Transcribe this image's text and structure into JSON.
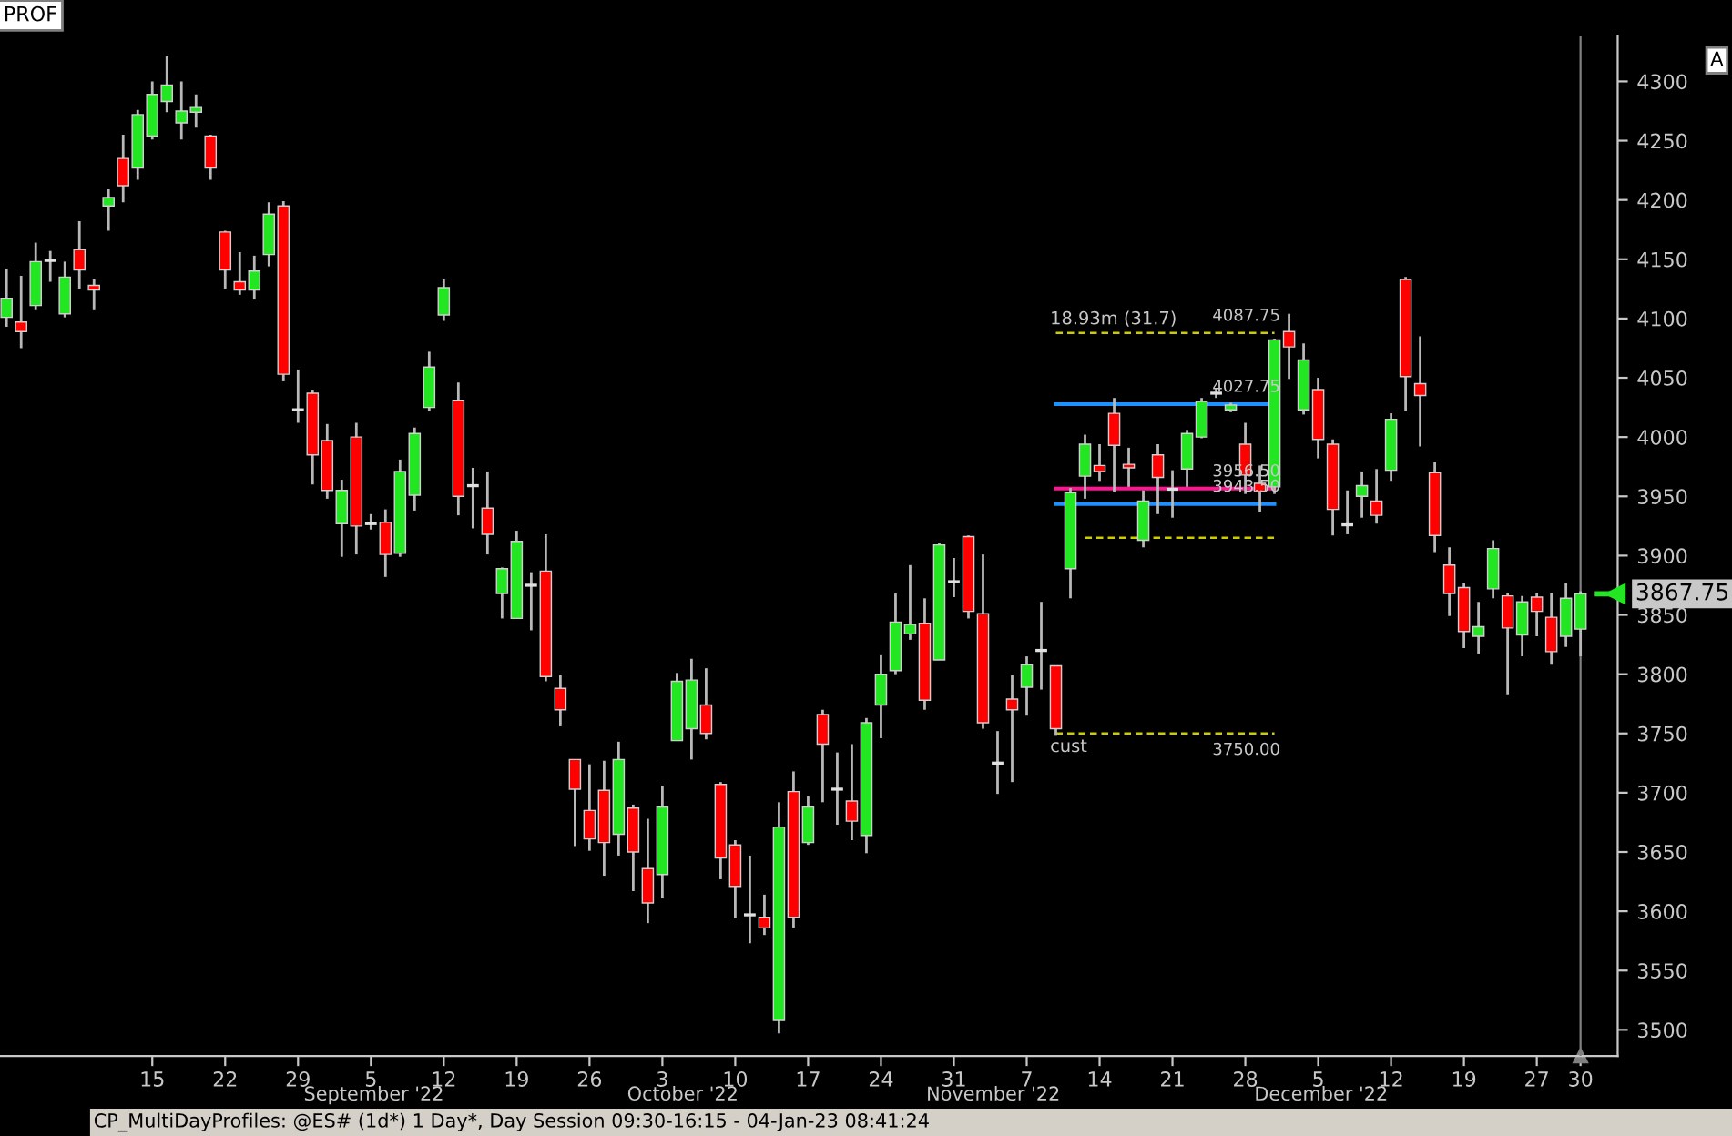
{
  "chart_data": {
    "type": "candlestick",
    "title": "CP_MultiDayProfiles: @ES# (1d*) 1 Day*, Day Session 09:30-16:15 - 04-Jan-23 08:41:24",
    "categories": [
      null,
      null,
      null,
      null,
      null,
      null,
      null,
      null,
      null,
      null,
      "15",
      null,
      null,
      null,
      null,
      "22",
      null,
      null,
      null,
      null,
      "29",
      null,
      null,
      null,
      null,
      "5",
      null,
      null,
      null,
      null,
      "12",
      null,
      null,
      null,
      null,
      "19",
      null,
      null,
      null,
      null,
      "26",
      null,
      null,
      null,
      null,
      "3",
      null,
      null,
      null,
      null,
      "10",
      null,
      null,
      null,
      null,
      "17",
      null,
      null,
      null,
      null,
      "24",
      null,
      null,
      null,
      null,
      "31",
      null,
      null,
      null,
      null,
      "7",
      null,
      null,
      null,
      null,
      "14",
      null,
      null,
      null,
      null,
      "21",
      null,
      null,
      null,
      null,
      "28",
      null,
      null,
      null,
      null,
      "5",
      null,
      null,
      null,
      null,
      "12",
      null,
      null,
      null,
      null,
      "19",
      null,
      null,
      null,
      null,
      "27",
      null,
      null,
      "30"
    ],
    "ohlc": [
      [
        4101,
        4142,
        4093,
        4117
      ],
      [
        4097,
        4136,
        4075,
        4089
      ],
      [
        4111,
        4164,
        4107,
        4148
      ],
      [
        4149,
        4157,
        4131,
        4149
      ],
      [
        4104,
        4148,
        4101,
        4135
      ],
      [
        4158,
        4182,
        4125,
        4141
      ],
      [
        4128,
        4133,
        4107,
        4124
      ],
      [
        4195,
        4209,
        4174,
        4202
      ],
      [
        4235,
        4255,
        4198,
        4212
      ],
      [
        4227,
        4276,
        4217,
        4272
      ],
      [
        4254,
        4300,
        4251,
        4289
      ],
      [
        4283,
        4321,
        4274,
        4297
      ],
      [
        4265,
        4300,
        4251,
        4275
      ],
      [
        4274,
        4289,
        4261,
        4278
      ],
      [
        4254,
        4255,
        4217,
        4227
      ],
      [
        4173,
        4174,
        4125,
        4141
      ],
      [
        4131,
        4156,
        4120,
        4124
      ],
      [
        4124,
        4153,
        4116,
        4140
      ],
      [
        4154,
        4198,
        4144,
        4188
      ],
      [
        4195,
        4199,
        4047,
        4053
      ],
      [
        4023,
        4057,
        4012,
        4023
      ],
      [
        4037,
        4040,
        3960,
        3985
      ],
      [
        3997,
        4011,
        3948,
        3955
      ],
      [
        3927,
        3964,
        3899,
        3955
      ],
      [
        4000,
        4012,
        3901,
        3925
      ],
      [
        3927,
        3935,
        3922,
        3927
      ],
      [
        3928,
        3939,
        3882,
        3901
      ],
      [
        3902,
        3981,
        3899,
        3971
      ],
      [
        3951,
        4008,
        3938,
        4003
      ],
      [
        4025,
        4072,
        4022,
        4059
      ],
      [
        4103,
        4133,
        4098,
        4126
      ],
      [
        4031,
        4046,
        3934,
        3950
      ],
      [
        3959,
        3974,
        3923,
        3959
      ],
      [
        3940,
        3971,
        3901,
        3918
      ],
      [
        3868,
        3890,
        3847,
        3889
      ],
      [
        3847,
        3921,
        3847,
        3912
      ],
      [
        3875,
        3886,
        3837,
        3875
      ],
      [
        3887,
        3918,
        3794,
        3798
      ],
      [
        3788,
        3799,
        3756,
        3770
      ],
      [
        3728,
        3728,
        3655,
        3703
      ],
      [
        3685,
        3724,
        3651,
        3661
      ],
      [
        3702,
        3727,
        3630,
        3658
      ],
      [
        3665,
        3743,
        3647,
        3728
      ],
      [
        3687,
        3690,
        3617,
        3650
      ],
      [
        3636,
        3678,
        3590,
        3607
      ],
      [
        3631,
        3706,
        3611,
        3688
      ],
      [
        3744,
        3801,
        3744,
        3794
      ],
      [
        3754,
        3813,
        3728,
        3795
      ],
      [
        3774,
        3805,
        3745,
        3750
      ],
      [
        3707,
        3709,
        3627,
        3645
      ],
      [
        3656,
        3660,
        3594,
        3621
      ],
      [
        3597,
        3647,
        3573,
        3597
      ],
      [
        3595,
        3614,
        3580,
        3586
      ],
      [
        3508,
        3692,
        3497,
        3671
      ],
      [
        3701,
        3718,
        3586,
        3595
      ],
      [
        3658,
        3697,
        3656,
        3688
      ],
      [
        3766,
        3770,
        3692,
        3741
      ],
      [
        3703,
        3734,
        3673,
        3703
      ],
      [
        3693,
        3741,
        3660,
        3676
      ],
      [
        3664,
        3763,
        3649,
        3759
      ],
      [
        3774,
        3816,
        3746,
        3800
      ],
      [
        3803,
        3868,
        3800,
        3844
      ],
      [
        3834,
        3892,
        3829,
        3842
      ],
      [
        3843,
        3864,
        3770,
        3778
      ],
      [
        3812,
        3911,
        3812,
        3909
      ],
      [
        3878,
        3898,
        3865,
        3878
      ],
      [
        3916,
        3917,
        3847,
        3853
      ],
      [
        3851,
        3901,
        3754,
        3759
      ],
      [
        3725,
        3752,
        3699,
        3725
      ],
      [
        3779,
        3799,
        3709,
        3770
      ],
      [
        3789,
        3815,
        3765,
        3808
      ],
      [
        3820,
        3861,
        3787,
        3820
      ],
      [
        3807,
        3807,
        3748,
        3754
      ],
      [
        3889,
        3957,
        3864,
        3953
      ],
      [
        3967,
        4002,
        3948,
        3994
      ],
      [
        3976,
        3994,
        3963,
        3971
      ],
      [
        4020,
        4033,
        3954,
        3993
      ],
      [
        3977,
        3991,
        3958,
        3974
      ],
      [
        3913,
        3955,
        3907,
        3946
      ],
      [
        3985,
        3994,
        3935,
        3966
      ],
      [
        3956,
        3972,
        3932,
        3956
      ],
      [
        3973,
        4006,
        3958,
        4003
      ],
      [
        4000,
        4033,
        3999,
        4030
      ],
      [
        4037,
        4041,
        4033,
        4037
      ],
      [
        4023,
        4029,
        4021,
        4027
      ],
      [
        3994,
        4012,
        3952,
        3968
      ],
      [
        3961,
        3976,
        3937,
        3954
      ],
      [
        3958,
        4083,
        3952,
        4082
      ],
      [
        4089,
        4104,
        4049,
        4076
      ],
      [
        4023,
        4079,
        4019,
        4065
      ],
      [
        4040,
        4050,
        3982,
        3998
      ],
      [
        3994,
        3998,
        3917,
        3939
      ],
      [
        3926,
        3955,
        3918,
        3926
      ],
      [
        3950,
        3971,
        3932,
        3959
      ],
      [
        3946,
        3973,
        3927,
        3934
      ],
      [
        3972,
        4020,
        3963,
        4015
      ],
      [
        4133,
        4135,
        4022,
        4051
      ],
      [
        4045,
        4085,
        3992,
        4035
      ],
      [
        3970,
        3979,
        3903,
        3917
      ],
      [
        3892,
        3907,
        3849,
        3868
      ],
      [
        3873,
        3877,
        3822,
        3836
      ],
      [
        3832,
        3861,
        3817,
        3840
      ],
      [
        3872,
        3913,
        3864,
        3906
      ],
      [
        3866,
        3868,
        3783,
        3839
      ],
      [
        3833,
        3866,
        3815,
        3861
      ],
      [
        3865,
        3868,
        3832,
        3853
      ],
      [
        3848,
        3868,
        3808,
        3819
      ],
      [
        3832,
        3877,
        3823,
        3864
      ],
      [
        3838,
        3870,
        3815,
        3867.75
      ]
    ],
    "colors": [
      "#22e622",
      "#ff0000",
      "#22e622",
      "#e0e0e0",
      "#22e622",
      "#ff0000",
      "#ff0000",
      "#22e622",
      "#ff0000",
      "#22e622",
      "#22e622",
      "#22e622",
      "#22e622",
      "#22e622",
      "#ff0000",
      "#ff0000",
      "#ff0000",
      "#22e622",
      "#22e622",
      "#ff0000",
      "#e0e0e0",
      "#ff0000",
      "#ff0000",
      "#22e622",
      "#ff0000",
      "#e0e0e0",
      "#ff0000",
      "#22e622",
      "#22e622",
      "#22e622",
      "#22e622",
      "#ff0000",
      "#e0e0e0",
      "#ff0000",
      "#22e622",
      "#22e622",
      "#e0e0e0",
      "#ff0000",
      "#ff0000",
      "#ff0000",
      "#ff0000",
      "#ff0000",
      "#22e622",
      "#ff0000",
      "#ff0000",
      "#22e622",
      "#22e622",
      "#22e622",
      "#ff0000",
      "#ff0000",
      "#ff0000",
      "#e0e0e0",
      "#ff0000",
      "#22e622",
      "#ff0000",
      "#22e622",
      "#ff0000",
      "#e0e0e0",
      "#ff0000",
      "#22e622",
      "#22e622",
      "#22e622",
      "#22e622",
      "#ff0000",
      "#22e622",
      "#e0e0e0",
      "#ff0000",
      "#ff0000",
      "#e0e0e0",
      "#ff0000",
      "#22e622",
      "#e0e0e0",
      "#ff0000",
      "#22e622",
      "#22e622",
      "#ff0000",
      "#ff0000",
      "#ff0000",
      "#22e622",
      "#ff0000",
      "#e0e0e0",
      "#22e622",
      "#22e622",
      "#e0e0e0",
      "#22e622",
      "#ff0000",
      "#ff0000",
      "#22e622",
      "#ff0000",
      "#22e622",
      "#ff0000",
      "#ff0000",
      "#e0e0e0",
      "#22e622",
      "#ff0000",
      "#22e622",
      "#ff0000",
      "#ff0000",
      "#ff0000",
      "#ff0000",
      "#ff0000",
      "#22e622",
      "#22e622",
      "#ff0000",
      "#22e622",
      "#ff0000",
      "#ff0000",
      "#22e622",
      "#22e622"
    ],
    "series": [
      {
        "type": "line",
        "color": "#cccc00",
        "line_style": "dashed",
        "values": [
          null,
          null,
          null,
          null,
          null,
          null,
          null,
          null,
          null,
          null,
          null,
          null,
          null,
          null,
          null,
          null,
          null,
          null,
          null,
          null,
          null,
          null,
          null,
          null,
          null,
          null,
          null,
          null,
          null,
          null,
          null,
          null,
          null,
          null,
          null,
          null,
          null,
          null,
          null,
          null,
          null,
          null,
          null,
          null,
          null,
          null,
          null,
          null,
          null,
          null,
          null,
          null,
          null,
          null,
          null,
          null,
          null,
          null,
          null,
          null,
          null,
          null,
          null,
          null,
          null,
          null,
          null,
          null,
          null,
          null,
          null,
          null,
          4087.75,
          4087.75,
          4087.75,
          4087.75,
          4087.75,
          4087.75,
          4087.75,
          4087.75,
          4087.75,
          4087.75,
          4087.75,
          4087.75,
          4087.75,
          4087.75,
          4087.75,
          4087.75,
          null,
          null,
          null,
          null,
          null,
          null,
          null,
          null,
          null,
          null,
          null,
          null,
          null,
          null,
          null,
          null,
          null,
          null,
          null,
          null,
          null
        ]
      },
      {
        "type": "line",
        "color": "#1e90ff",
        "line_style": "solid",
        "values": [
          null,
          null,
          null,
          null,
          null,
          null,
          null,
          null,
          null,
          null,
          null,
          null,
          null,
          null,
          null,
          null,
          null,
          null,
          null,
          null,
          null,
          null,
          null,
          null,
          null,
          null,
          null,
          null,
          null,
          null,
          null,
          null,
          null,
          null,
          null,
          null,
          null,
          null,
          null,
          null,
          null,
          null,
          null,
          null,
          null,
          null,
          null,
          null,
          null,
          null,
          null,
          null,
          null,
          null,
          null,
          null,
          null,
          null,
          null,
          null,
          null,
          null,
          null,
          null,
          null,
          null,
          null,
          null,
          null,
          null,
          null,
          null,
          4027.75,
          4027.75,
          4027.75,
          4027.75,
          4027.75,
          4027.75,
          4027.75,
          4027.75,
          4027.75,
          4027.75,
          4027.75,
          4027.75,
          4027.75,
          4027.75,
          4027.75,
          4027.75,
          null,
          null,
          null,
          null,
          null,
          null,
          null,
          null,
          null,
          null,
          null,
          null,
          null,
          null,
          null,
          null,
          null,
          null,
          null,
          null,
          null
        ]
      },
      {
        "type": "line",
        "color": "#ff1493",
        "line_style": "solid",
        "values": [
          null,
          null,
          null,
          null,
          null,
          null,
          null,
          null,
          null,
          null,
          null,
          null,
          null,
          null,
          null,
          null,
          null,
          null,
          null,
          null,
          null,
          null,
          null,
          null,
          null,
          null,
          null,
          null,
          null,
          null,
          null,
          null,
          null,
          null,
          null,
          null,
          null,
          null,
          null,
          null,
          null,
          null,
          null,
          null,
          null,
          null,
          null,
          null,
          null,
          null,
          null,
          null,
          null,
          null,
          null,
          null,
          null,
          null,
          null,
          null,
          null,
          null,
          null,
          null,
          null,
          null,
          null,
          null,
          null,
          null,
          null,
          null,
          3956.5,
          3956.5,
          3956.5,
          3956.5,
          3956.5,
          3956.5,
          3956.5,
          3956.5,
          3956.5,
          3956.5,
          3956.5,
          3956.5,
          3956.5,
          3956.5,
          3956.5,
          3956.5,
          null,
          null,
          null,
          null,
          null,
          null,
          null,
          null,
          null,
          null,
          null,
          null,
          null,
          null,
          null,
          null,
          null,
          null,
          null,
          null,
          null
        ]
      },
      {
        "type": "line",
        "color": "#1e90ff",
        "line_style": "solid",
        "values": [
          null,
          null,
          null,
          null,
          null,
          null,
          null,
          null,
          null,
          null,
          null,
          null,
          null,
          null,
          null,
          null,
          null,
          null,
          null,
          null,
          null,
          null,
          null,
          null,
          null,
          null,
          null,
          null,
          null,
          null,
          null,
          null,
          null,
          null,
          null,
          null,
          null,
          null,
          null,
          null,
          null,
          null,
          null,
          null,
          null,
          null,
          null,
          null,
          null,
          null,
          null,
          null,
          null,
          null,
          null,
          null,
          null,
          null,
          null,
          null,
          null,
          null,
          null,
          null,
          null,
          null,
          null,
          null,
          null,
          null,
          null,
          null,
          3943.5,
          3943.5,
          3943.5,
          3943.5,
          3943.5,
          3943.5,
          3943.5,
          3943.5,
          3943.5,
          3943.5,
          3943.5,
          3943.5,
          3943.5,
          3943.5,
          3943.5,
          3943.5,
          null,
          null,
          null,
          null,
          null,
          null,
          null,
          null,
          null,
          null,
          null,
          null,
          null,
          null,
          null,
          null,
          null,
          null,
          null,
          null,
          null
        ]
      },
      {
        "type": "line",
        "color": "#cccc00",
        "line_style": "dashed",
        "values": [
          null,
          null,
          null,
          null,
          null,
          null,
          null,
          null,
          null,
          null,
          null,
          null,
          null,
          null,
          null,
          null,
          null,
          null,
          null,
          null,
          null,
          null,
          null,
          null,
          null,
          null,
          null,
          null,
          null,
          null,
          null,
          null,
          null,
          null,
          null,
          null,
          null,
          null,
          null,
          null,
          null,
          null,
          null,
          null,
          null,
          null,
          null,
          null,
          null,
          null,
          null,
          null,
          null,
          null,
          null,
          null,
          null,
          null,
          null,
          null,
          null,
          null,
          null,
          null,
          null,
          null,
          null,
          null,
          null,
          null,
          null,
          null,
          null,
          null,
          3915,
          3915,
          3915,
          3915,
          3915,
          3915,
          3915,
          3915,
          3915,
          3915,
          3915,
          3915,
          3915,
          3915,
          null,
          null,
          null,
          null,
          null,
          null,
          null,
          null,
          null,
          null,
          null,
          null,
          null,
          null,
          null,
          null,
          null,
          null,
          null,
          null,
          null
        ]
      },
      {
        "type": "line",
        "color": "#cccc00",
        "line_style": "dashed",
        "values": [
          null,
          null,
          null,
          null,
          null,
          null,
          null,
          null,
          null,
          null,
          null,
          null,
          null,
          null,
          null,
          null,
          null,
          null,
          null,
          null,
          null,
          null,
          null,
          null,
          null,
          null,
          null,
          null,
          null,
          null,
          null,
          null,
          null,
          null,
          null,
          null,
          null,
          null,
          null,
          null,
          null,
          null,
          null,
          null,
          null,
          null,
          null,
          null,
          null,
          null,
          null,
          null,
          null,
          null,
          null,
          null,
          null,
          null,
          null,
          null,
          null,
          null,
          null,
          null,
          null,
          null,
          null,
          null,
          null,
          null,
          null,
          null,
          3750,
          3750,
          3750,
          3750,
          3750,
          3750,
          3750,
          3750,
          3750,
          3750,
          3750,
          3750,
          3750,
          3750,
          3750,
          3750,
          null,
          null,
          null,
          null,
          null,
          null,
          null,
          null,
          null,
          null,
          null,
          null,
          null,
          null,
          null,
          null,
          null,
          null,
          null,
          null,
          null
        ]
      }
    ],
    "ylim": [
      3478,
      4338
    ],
    "yticks": [
      3500,
      3550,
      3600,
      3650,
      3700,
      3750,
      3800,
      3850,
      3900,
      3950,
      4000,
      4050,
      4100,
      4150,
      4200,
      4250,
      4300
    ],
    "ref_lines": [
      {
        "axis": "y",
        "value": 3867.75,
        "label": "3867.75",
        "color": "#22e622"
      },
      {
        "axis": "x",
        "value": "30",
        "color": "#808080"
      }
    ],
    "annotations": [
      "PROF",
      "A",
      "18.93m (31.7)",
      "cust",
      "September '22",
      "October '22",
      "November '22",
      "December '22",
      {
        "text": "4087.75",
        "y": 4087.75
      },
      {
        "text": "4027.75",
        "y": 4027.75
      },
      {
        "text": "3956.50",
        "y": 3956.5
      },
      {
        "text": "3943.50",
        "y": 3943.5
      },
      {
        "text": "3750.00",
        "y": 3750
      }
    ],
    "grid": false,
    "legend": false
  }
}
